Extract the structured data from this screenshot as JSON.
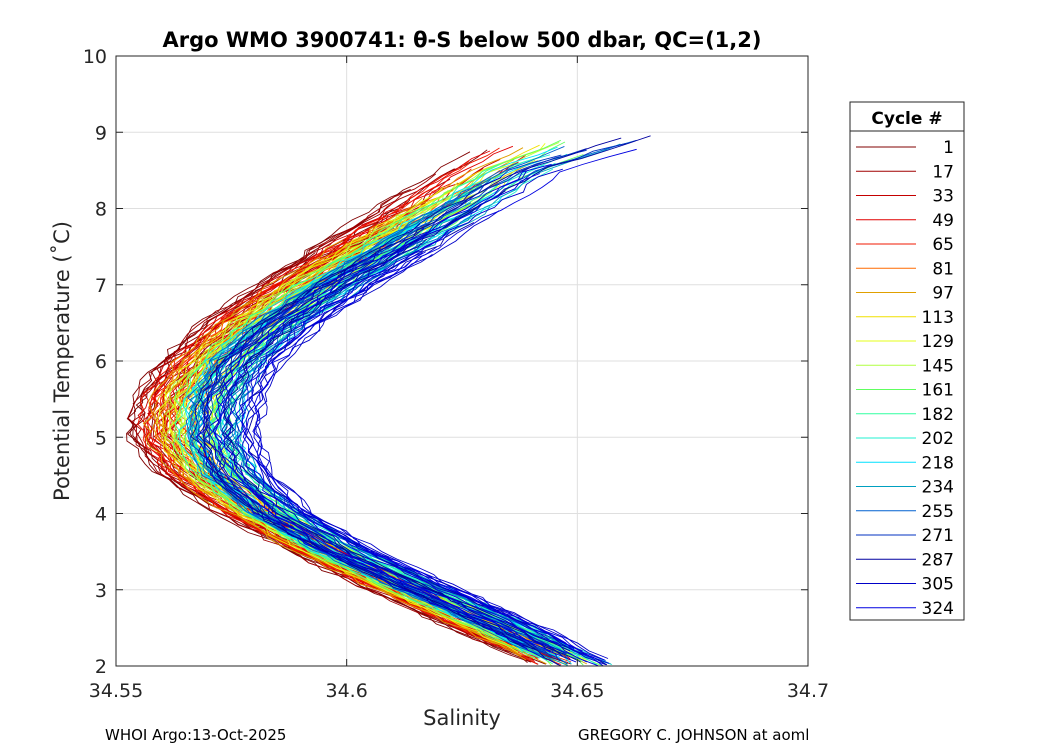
{
  "chart_data": {
    "type": "line",
    "title": "Argo WMO 3900741: θ-S below 500 dbar,  QC=(1,2)",
    "xlabel": "Salinity",
    "ylabel": "Potential Temperature (˚C)",
    "xlim": [
      34.55,
      34.7
    ],
    "ylim": [
      2,
      10
    ],
    "x_ticks": [
      34.55,
      34.6,
      34.65,
      34.7
    ],
    "x_tick_labels": [
      "34.55",
      "34.6",
      "34.65",
      "34.7"
    ],
    "y_ticks": [
      2,
      3,
      4,
      5,
      6,
      7,
      8,
      9,
      10
    ],
    "y_tick_labels": [
      "2",
      "3",
      "4",
      "5",
      "6",
      "7",
      "8",
      "9",
      "10"
    ],
    "grid": true,
    "legend": {
      "title": "Cycle #",
      "placement": "outside-right",
      "entries": [
        {
          "label": "1",
          "color": "#800000"
        },
        {
          "label": "17",
          "color": "#a00000"
        },
        {
          "label": "33",
          "color": "#c40000"
        },
        {
          "label": "49",
          "color": "#e00000"
        },
        {
          "label": "65",
          "color": "#f01800"
        },
        {
          "label": "81",
          "color": "#ff6a00"
        },
        {
          "label": "97",
          "color": "#e0a000"
        },
        {
          "label": "113",
          "color": "#f0e000"
        },
        {
          "label": "129",
          "color": "#e6ff1a"
        },
        {
          "label": "145",
          "color": "#b0ff40"
        },
        {
          "label": "161",
          "color": "#60ff60"
        },
        {
          "label": "182",
          "color": "#30ffa0"
        },
        {
          "label": "202",
          "color": "#20f0d0"
        },
        {
          "label": "218",
          "color": "#00e0ff"
        },
        {
          "label": "234",
          "color": "#00a0c0"
        },
        {
          "label": "255",
          "color": "#0060d0"
        },
        {
          "label": "271",
          "color": "#0030c0"
        },
        {
          "label": "287",
          "color": "#0000a0"
        },
        {
          "label": "305",
          "color": "#0000c8"
        },
        {
          "label": "324",
          "color": "#0000e0"
        }
      ]
    },
    "series_envelope": {
      "theta": [
        2.0,
        2.5,
        3.0,
        3.5,
        4.0,
        4.5,
        5.0,
        5.5,
        6.0,
        6.5,
        7.0,
        7.5,
        8.0,
        8.5,
        9.0
      ],
      "salinity_red_profiles": [
        34.647,
        34.628,
        34.61,
        34.593,
        34.578,
        34.565,
        34.558,
        34.559,
        34.565,
        34.574,
        34.586,
        34.599,
        34.612,
        34.625,
        34.638
      ],
      "salinity_blue_profiles": [
        34.653,
        34.637,
        34.619,
        34.601,
        34.587,
        34.578,
        34.575,
        34.576,
        34.58,
        34.589,
        34.601,
        34.615,
        34.629,
        34.643,
        34.67
      ]
    }
  },
  "footer": {
    "left": "WHOI Argo:13-Oct-2025",
    "right": "GREGORY C. JOHNSON at aoml"
  }
}
